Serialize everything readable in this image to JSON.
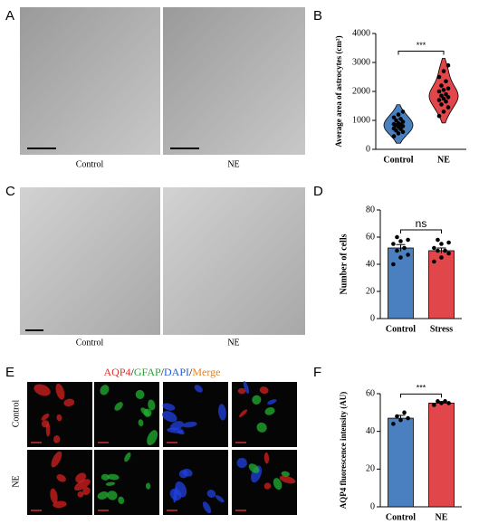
{
  "panel_labels": [
    "A",
    "B",
    "C",
    "D",
    "E",
    "F"
  ],
  "panel_a": {
    "captions": [
      "Control",
      "NE"
    ]
  },
  "panel_c": {
    "captions": [
      "Control",
      "NE"
    ]
  },
  "panel_e": {
    "header": [
      {
        "text": "AQP4",
        "color": "#e0322c"
      },
      {
        "text": "/",
        "color": "#000000"
      },
      {
        "text": "GFAP",
        "color": "#2e9e3a"
      },
      {
        "text": "/",
        "color": "#000000"
      },
      {
        "text": "DAPI",
        "color": "#2a5dc9"
      },
      {
        "text": "/",
        "color": "#000000"
      },
      {
        "text": "Merge",
        "color": "#e8821e"
      }
    ],
    "row_labels": [
      "Control",
      "NE"
    ]
  },
  "chart_data": [
    {
      "type": "violin",
      "ylabel": "Average area of astrocytes (cm²)",
      "categories": [
        "Control",
        "NE"
      ],
      "colors": [
        "#4a7fc0",
        "#e0464a"
      ],
      "points": [
        [
          450,
          550,
          600,
          650,
          700,
          720,
          780,
          800,
          830,
          850,
          870,
          900,
          950,
          1000,
          1050,
          1100,
          1200,
          1300
        ],
        [
          1150,
          1300,
          1450,
          1550,
          1650,
          1700,
          1750,
          1800,
          1850,
          1900,
          2000,
          2050,
          2100,
          2200,
          2350,
          2500,
          2700,
          2900
        ]
      ],
      "ylim": [
        0,
        4000
      ],
      "yticks": [
        0,
        1000,
        2000,
        3000,
        4000
      ],
      "annotation": "***"
    },
    {
      "type": "bar",
      "ylabel": "Number of cells",
      "categories": [
        "Control",
        "Stress"
      ],
      "colors": [
        "#4a7fc0",
        "#e0464a"
      ],
      "values": [
        52,
        50
      ],
      "errors": [
        2.5,
        2
      ],
      "points": [
        [
          40,
          45,
          47,
          50,
          52,
          55,
          57,
          58,
          60
        ],
        [
          42,
          45,
          48,
          50,
          50,
          52,
          55,
          56,
          58
        ]
      ],
      "ylim": [
        0,
        80
      ],
      "yticks": [
        0,
        20,
        40,
        60,
        80
      ],
      "annotation": "ns"
    },
    {
      "type": "bar",
      "ylabel": "AQP4 fluorescence intensity (AU)",
      "categories": [
        "Control",
        "NE"
      ],
      "colors": [
        "#4a7fc0",
        "#e0464a"
      ],
      "values": [
        47,
        55
      ],
      "errors": [
        1.5,
        0.8
      ],
      "points": [
        [
          44,
          46,
          47,
          48,
          50
        ],
        [
          54,
          55,
          55,
          56,
          56
        ]
      ],
      "ylim": [
        0,
        60
      ],
      "yticks": [
        0,
        20,
        40,
        60
      ],
      "annotation": "***"
    }
  ]
}
